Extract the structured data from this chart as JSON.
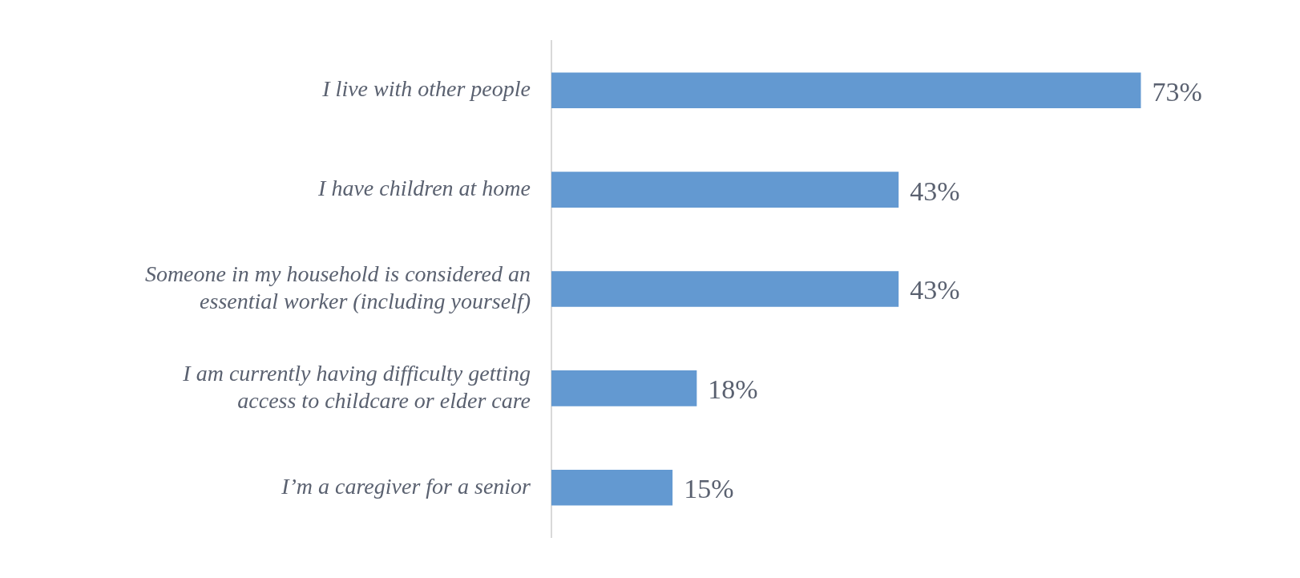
{
  "chart_data": {
    "type": "bar",
    "orientation": "horizontal",
    "categories": [
      "I live with other people",
      "I have children at home",
      "Someone in my household is considered an essential worker (including yourself)",
      "I am currently having difficulty getting access to childcare or elder care",
      "I’m a caregiver for a senior"
    ],
    "values": [
      73,
      43,
      43,
      18,
      15
    ],
    "value_labels": [
      "73%",
      "43%",
      "43%",
      "18%",
      "15%"
    ],
    "color": "#6399d1",
    "tick_labels": "y",
    "grid": false,
    "legend": false
  }
}
